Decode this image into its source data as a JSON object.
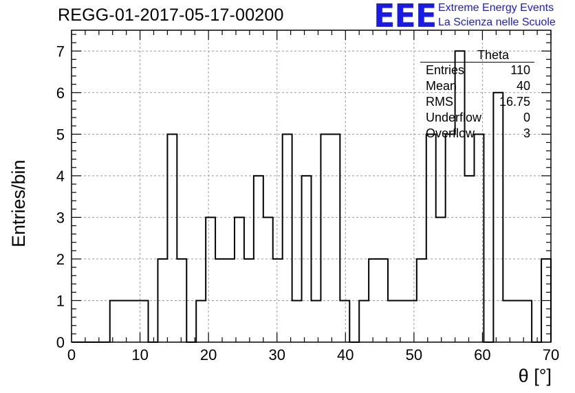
{
  "title": "REGG-01-2017-05-17-00200",
  "logo": {
    "mark": "EEE",
    "line1": "Extreme Energy Events",
    "line2": "La Scienza nelle Scuole",
    "color": "#1a1ae6"
  },
  "stats_box": {
    "title": "Theta",
    "rows": [
      {
        "label": "Entries",
        "value": "110"
      },
      {
        "label": "Mean",
        "value": "40"
      },
      {
        "label": "RMS",
        "value": "16.75"
      },
      {
        "label": "Underflow",
        "value": "0"
      },
      {
        "label": "Overflow",
        "value": "3"
      }
    ]
  },
  "chart_data": {
    "type": "histogram",
    "xlabel": "θ [°]",
    "ylabel": "Entries/bin",
    "xlim": [
      0,
      70
    ],
    "ylim": [
      0,
      7.5
    ],
    "x_ticks": [
      0,
      10,
      20,
      30,
      40,
      50,
      60,
      70
    ],
    "y_ticks": [
      0,
      1,
      2,
      3,
      4,
      5,
      6,
      7
    ],
    "grid": true,
    "bin_width": 1.4,
    "bin_edges_start": 0,
    "counts": [
      0,
      0,
      0,
      0,
      1,
      1,
      1,
      1,
      0,
      2,
      5,
      2,
      0,
      1,
      3,
      2,
      2,
      3,
      2,
      4,
      3,
      2,
      5,
      1,
      4,
      1,
      5,
      5,
      1,
      0,
      1,
      2,
      2,
      1,
      1,
      1,
      2,
      5,
      3,
      5,
      7,
      4,
      5,
      0,
      6,
      1,
      1,
      1,
      0,
      2
    ]
  }
}
